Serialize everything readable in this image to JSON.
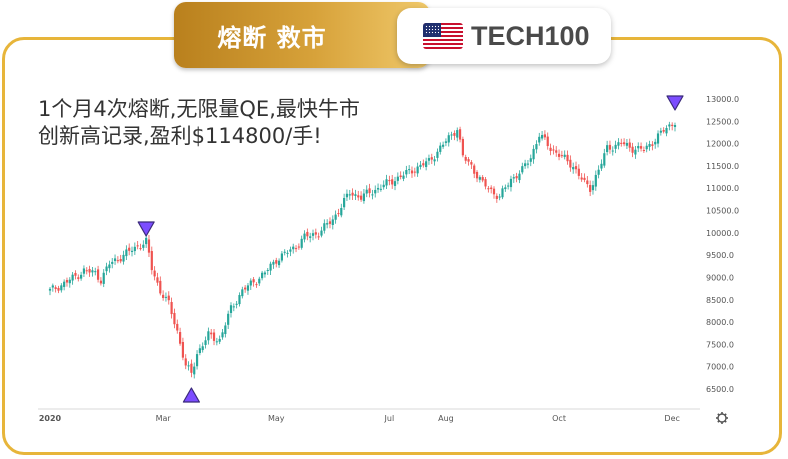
{
  "header": {
    "left_tab": "熔断 救市",
    "right_tab": "TECH100",
    "flag_icon": "us-flag-icon"
  },
  "headline": {
    "line1": "1个月4次熔断,无限量QE,最快牛市",
    "line2": "创新高记录,盈利$114800/手!"
  },
  "colors": {
    "accent_gold": "#e7b53a",
    "up_candle": "#26a69a",
    "down_candle": "#ef5350",
    "marker": "#7c4dff"
  },
  "chart_data": {
    "type": "candlestick",
    "title": "",
    "ylabel": "",
    "xlabel": "",
    "ylim": [
      6250,
      13250
    ],
    "yticks": [
      "13000.0",
      "12500.0",
      "12000.0",
      "11500.0",
      "11000.0",
      "10500.0",
      "10000.0",
      "9500.0",
      "9000.0",
      "8500.0",
      "8000.0",
      "7500.0",
      "7000.0",
      "6500.0"
    ],
    "xticks": [
      "2020",
      "Mar",
      "May",
      "Jul",
      "Aug",
      "Oct",
      "Dec"
    ],
    "xtick_positions": [
      0,
      40,
      80,
      120,
      140,
      180,
      220
    ],
    "anchors": [
      [
        0,
        8700
      ],
      [
        6,
        8900
      ],
      [
        12,
        9150
      ],
      [
        16,
        9100
      ],
      [
        18,
        8950
      ],
      [
        21,
        9300
      ],
      [
        26,
        9500
      ],
      [
        31,
        9700
      ],
      [
        34,
        9800
      ],
      [
        36,
        9200
      ],
      [
        39,
        8700
      ],
      [
        42,
        8400
      ],
      [
        45,
        7800
      ],
      [
        48,
        7000
      ],
      [
        50,
        6850
      ],
      [
        52,
        7300
      ],
      [
        56,
        7700
      ],
      [
        60,
        7600
      ],
      [
        64,
        8300
      ],
      [
        68,
        8700
      ],
      [
        72,
        8900
      ],
      [
        76,
        9100
      ],
      [
        80,
        9400
      ],
      [
        86,
        9650
      ],
      [
        90,
        9900
      ],
      [
        95,
        10000
      ],
      [
        100,
        10300
      ],
      [
        106,
        10900
      ],
      [
        110,
        10800
      ],
      [
        116,
        11000
      ],
      [
        122,
        11200
      ],
      [
        128,
        11400
      ],
      [
        134,
        11600
      ],
      [
        138,
        11900
      ],
      [
        142,
        12200
      ],
      [
        144,
        12350
      ],
      [
        146,
        11700
      ],
      [
        149,
        11500
      ],
      [
        153,
        11100
      ],
      [
        157,
        10900
      ],
      [
        159,
        10800
      ],
      [
        163,
        11200
      ],
      [
        167,
        11400
      ],
      [
        170,
        11700
      ],
      [
        173,
        12200
      ],
      [
        177,
        11900
      ],
      [
        181,
        11700
      ],
      [
        185,
        11500
      ],
      [
        189,
        11100
      ],
      [
        191,
        11000
      ],
      [
        194,
        11400
      ],
      [
        197,
        11900
      ],
      [
        202,
        12000
      ],
      [
        206,
        11900
      ],
      [
        210,
        11850
      ],
      [
        214,
        12100
      ],
      [
        218,
        12350
      ],
      [
        221,
        12500
      ]
    ],
    "markers": [
      {
        "type": "down",
        "index": 34
      },
      {
        "type": "up",
        "index": 50
      },
      {
        "type": "down",
        "index": 221
      }
    ]
  }
}
